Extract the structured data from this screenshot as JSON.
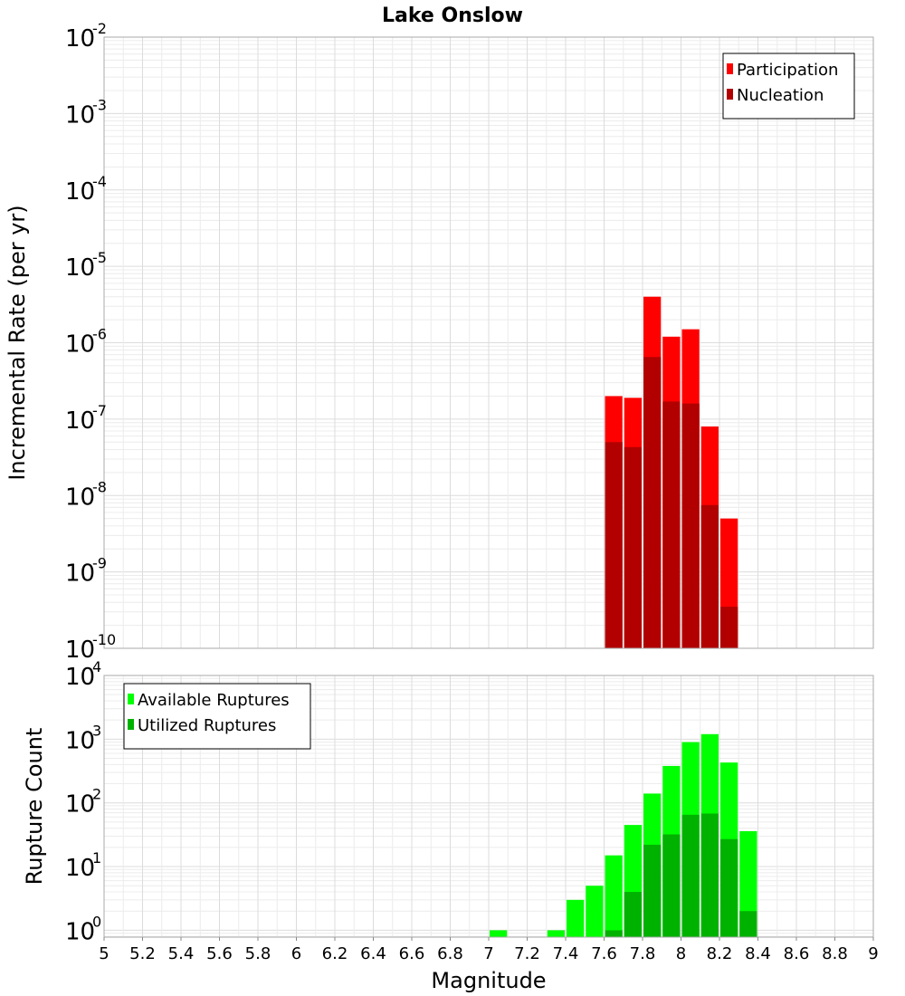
{
  "chart_data": [
    {
      "type": "bar",
      "panel": "top",
      "title": "Lake Onslow",
      "ylabel": "Incremental Rate (per yr)",
      "yscale": "log",
      "ylim": [
        1e-10,
        0.01
      ],
      "xlim": [
        5,
        9
      ],
      "y_ticks": [
        {
          "base": "10",
          "exp": "-10",
          "value": 1e-10
        },
        {
          "base": "10",
          "exp": "-9",
          "value": 1e-09
        },
        {
          "base": "10",
          "exp": "-8",
          "value": 1e-08
        },
        {
          "base": "10",
          "exp": "-7",
          "value": 1e-07
        },
        {
          "base": "10",
          "exp": "-6",
          "value": 1e-06
        },
        {
          "base": "10",
          "exp": "-5",
          "value": 1e-05
        },
        {
          "base": "10",
          "exp": "-4",
          "value": 0.0001
        },
        {
          "base": "10",
          "exp": "-3",
          "value": 0.001
        },
        {
          "base": "10",
          "exp": "-2",
          "value": 0.01
        }
      ],
      "legend_position": "top-right",
      "grid": true,
      "bin_width": 0.1,
      "series": [
        {
          "name": "Participation",
          "color": "#ff0000",
          "x": [
            7.65,
            7.75,
            7.85,
            7.95,
            8.05,
            8.15,
            8.25
          ],
          "values": [
            2e-07,
            1.9e-07,
            4e-06,
            1.2e-06,
            1.5e-06,
            8e-08,
            5e-09
          ]
        },
        {
          "name": "Nucleation",
          "color": "#b20000",
          "x": [
            7.65,
            7.75,
            7.85,
            7.95,
            8.05,
            8.15,
            8.25
          ],
          "values": [
            5e-08,
            4.3e-08,
            6.5e-07,
            1.7e-07,
            1.6e-07,
            7.5e-09,
            3.5e-10
          ]
        }
      ]
    },
    {
      "type": "bar",
      "panel": "bottom",
      "ylabel": "Rupture Count",
      "xlabel": "Magnitude",
      "yscale": "log",
      "ylim": [
        0.78,
        10000
      ],
      "xlim": [
        5,
        9
      ],
      "x_ticks": [
        "5",
        "5.2",
        "5.4",
        "5.6",
        "5.8",
        "6",
        "6.2",
        "6.4",
        "6.6",
        "6.8",
        "7",
        "7.2",
        "7.4",
        "7.6",
        "7.8",
        "8",
        "8.2",
        "8.4",
        "8.6",
        "8.8",
        "9"
      ],
      "y_ticks": [
        {
          "base": "10",
          "exp": "0",
          "value": 1
        },
        {
          "base": "10",
          "exp": "1",
          "value": 10
        },
        {
          "base": "10",
          "exp": "2",
          "value": 100
        },
        {
          "base": "10",
          "exp": "3",
          "value": 1000
        },
        {
          "base": "10",
          "exp": "4",
          "value": 10000
        }
      ],
      "legend_position": "top-left",
      "grid": true,
      "bin_width": 0.1,
      "series": [
        {
          "name": "Available Ruptures",
          "color": "#00ff00",
          "x": [
            7.05,
            7.35,
            7.45,
            7.55,
            7.65,
            7.75,
            7.85,
            7.95,
            8.05,
            8.15,
            8.25,
            8.35
          ],
          "values": [
            1,
            1,
            3,
            5,
            15,
            45,
            140,
            380,
            900,
            1200,
            430,
            36
          ]
        },
        {
          "name": "Utilized Ruptures",
          "color": "#00b200",
          "x": [
            7.65,
            7.75,
            7.85,
            7.95,
            8.05,
            8.15,
            8.25,
            8.35
          ],
          "values": [
            1,
            4,
            22,
            32,
            65,
            68,
            27,
            2
          ]
        }
      ]
    }
  ]
}
